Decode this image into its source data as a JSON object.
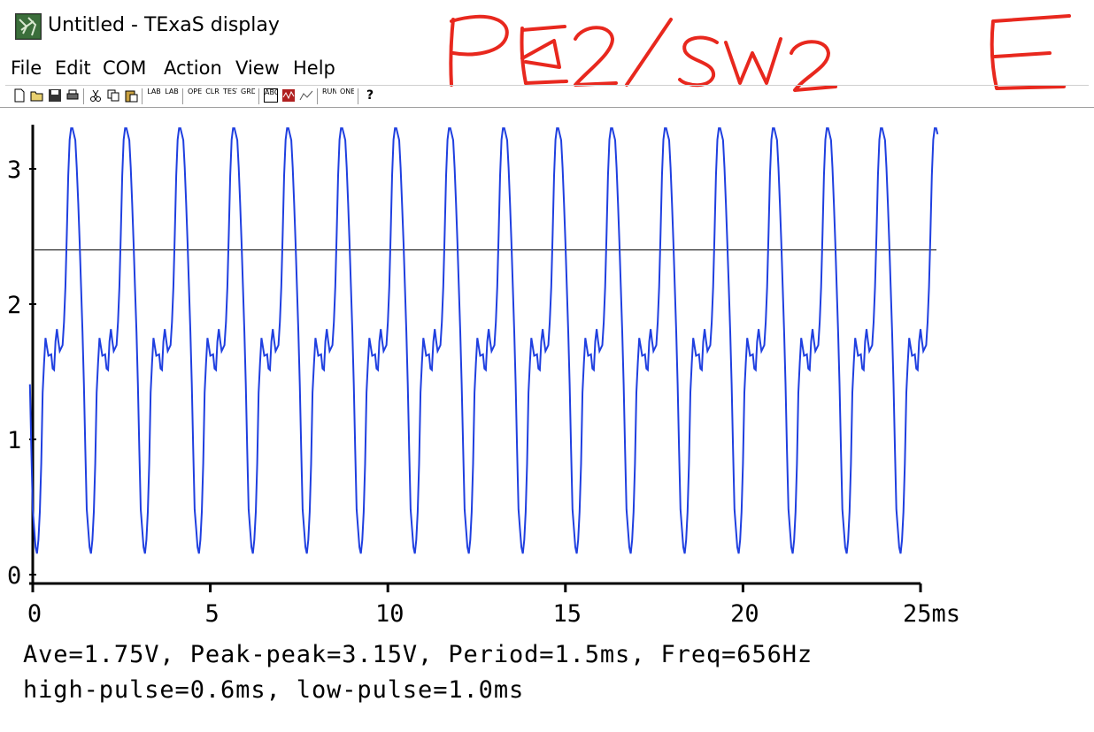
{
  "window": {
    "title": "Untitled - TExaS display"
  },
  "menu": [
    {
      "label": "File"
    },
    {
      "label": "Edit"
    },
    {
      "label": "COM"
    },
    {
      "label": "Action"
    },
    {
      "label": "View"
    },
    {
      "label": "Help"
    }
  ],
  "toolbar": {
    "buttons": [
      {
        "icon": "new-file-icon",
        "text": ""
      },
      {
        "icon": "open-folder-icon",
        "text": ""
      },
      {
        "icon": "save-icon",
        "text": ""
      },
      {
        "icon": "print-icon",
        "text": ""
      },
      {
        "icon": "cut-icon",
        "text": ""
      },
      {
        "icon": "copy-icon",
        "text": ""
      },
      {
        "icon": "paste-icon",
        "text": ""
      },
      {
        "icon": "lab-icon",
        "text": "LAB"
      },
      {
        "icon": "lab-icon",
        "text": "LAB"
      },
      {
        "icon": "open-icon",
        "text": "OPEN"
      },
      {
        "icon": "clear-icon",
        "text": "CLR"
      },
      {
        "icon": "test-icon",
        "text": "TEST"
      },
      {
        "icon": "grade-icon",
        "text": "GRD"
      },
      {
        "icon": "abc-icon",
        "text": "ABC"
      },
      {
        "icon": "scope-icon",
        "text": ""
      },
      {
        "icon": "chart-icon",
        "text": ""
      },
      {
        "icon": "run-stop-icon",
        "text": "RUN"
      },
      {
        "icon": "one-icon",
        "text": "ONE"
      },
      {
        "icon": "help-icon",
        "text": "?"
      }
    ]
  },
  "annotation": {
    "left": "PE2/SW2",
    "right": "E",
    "color": "#e8281e"
  },
  "stats": {
    "line1": "Ave=1.75V, Peak-peak=3.15V, Period=1.5ms, Freq=656Hz",
    "line2": "high-pulse=0.6ms, low-pulse=1.0ms"
  },
  "chart_data": {
    "type": "line",
    "x_unit": "ms",
    "x_ticks": [
      "0",
      "5",
      "10",
      "15",
      "20",
      "25ms"
    ],
    "y_ticks": [
      "0",
      "1",
      "2",
      "3"
    ],
    "xlim": [
      0,
      25
    ],
    "ylim": [
      0,
      3.3
    ],
    "reference_line_y": 2.4,
    "period_ms": 1.52,
    "series_color": "#1f3fe0",
    "waveform_shape": {
      "t_fraction": [
        0,
        0.06,
        0.12,
        0.2,
        0.26,
        0.32,
        0.34,
        0.36,
        0.39,
        0.42,
        0.45,
        0.5,
        0.56,
        0.6,
        0.65,
        0.7,
        0.76,
        0.82,
        0.86,
        0.9,
        0.93,
        0.96,
        1.0
      ],
      "volts": [
        3.3,
        3.2,
        2.6,
        1.6,
        0.5,
        0.18,
        0.15,
        0.2,
        0.4,
        0.8,
        1.4,
        1.75,
        1.6,
        1.65,
        1.45,
        1.85,
        1.65,
        1.7,
        2.0,
        2.6,
        3.1,
        3.3,
        3.3
      ]
    },
    "start_offset_ms": -0.4,
    "end_ms": 25.5
  }
}
